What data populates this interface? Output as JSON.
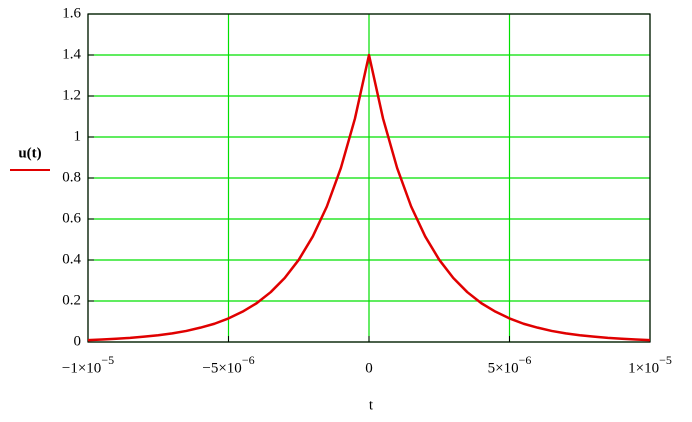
{
  "chart_data": {
    "type": "line",
    "x_label": "t",
    "x": [
      -1e-05,
      -9.5e-06,
      -9e-06,
      -8.5e-06,
      -8e-06,
      -7.5e-06,
      -7e-06,
      -6.5e-06,
      -6e-06,
      -5.5e-06,
      -5e-06,
      -4.5e-06,
      -4e-06,
      -3.5e-06,
      -3e-06,
      -2.5e-06,
      -2e-06,
      -1.5e-06,
      -1e-06,
      -5e-07,
      0,
      5e-07,
      1e-06,
      1.5e-06,
      2e-06,
      2.5e-06,
      3e-06,
      3.5e-06,
      4e-06,
      4.5e-06,
      5e-06,
      5.5e-06,
      6e-06,
      6.5e-06,
      7e-06,
      7.5e-06,
      8e-06,
      8.5e-06,
      9e-06,
      9.5e-06,
      1e-05
    ],
    "series": [
      {
        "name": "u(t)",
        "color": "#e00000",
        "values": [
          0.009,
          0.012,
          0.016,
          0.02,
          0.026,
          0.033,
          0.042,
          0.054,
          0.07,
          0.089,
          0.115,
          0.148,
          0.189,
          0.243,
          0.312,
          0.401,
          0.515,
          0.661,
          0.849,
          1.09,
          1.4,
          1.09,
          0.849,
          0.661,
          0.515,
          0.401,
          0.312,
          0.243,
          0.189,
          0.148,
          0.115,
          0.089,
          0.07,
          0.054,
          0.042,
          0.033,
          0.026,
          0.02,
          0.016,
          0.012,
          0.009
        ]
      }
    ],
    "xlim": [
      -1e-05,
      1e-05
    ],
    "xticks": [
      {
        "value": -1e-05,
        "label": "−1×10",
        "exponent": "−5"
      },
      {
        "value": -5e-06,
        "label": "−5×10",
        "exponent": "−6"
      },
      0,
      {
        "value": 5e-06,
        "label": "5×10",
        "exponent": "−6"
      },
      {
        "value": 1e-05,
        "label": "1×10",
        "exponent": "−5"
      }
    ],
    "ylim": [
      0,
      1.6
    ],
    "yticks": [
      0,
      0.2,
      0.4,
      0.6,
      0.8,
      1,
      1.2,
      1.4,
      1.6
    ],
    "grid": true
  }
}
